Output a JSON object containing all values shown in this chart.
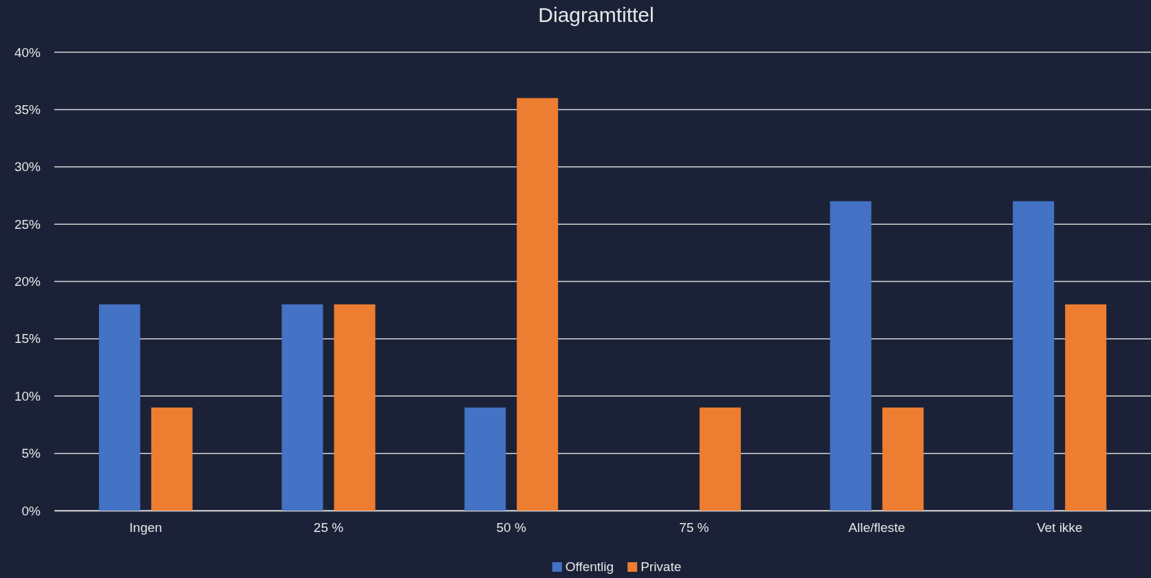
{
  "chart_data": {
    "type": "bar",
    "title": "Diagramtittel",
    "categories": [
      "Ingen",
      "25 %",
      "50 %",
      "75 %",
      "Alle/fleste",
      "Vet ikke"
    ],
    "series": [
      {
        "name": "Offentlig",
        "color": "#4472c4",
        "values": [
          18,
          18,
          9,
          0,
          27,
          27
        ]
      },
      {
        "name": "Private",
        "color": "#ed7d31",
        "values": [
          9,
          18,
          36,
          9,
          9,
          18
        ]
      }
    ],
    "ylim": [
      0,
      40
    ],
    "yticks": [
      {
        "value": 0,
        "label": "0%"
      },
      {
        "value": 5,
        "label": "5%"
      },
      {
        "value": 10,
        "label": "10%"
      },
      {
        "value": 15,
        "label": "15%"
      },
      {
        "value": 20,
        "label": "20%"
      },
      {
        "value": 25,
        "label": "25%"
      },
      {
        "value": 30,
        "label": "30%"
      },
      {
        "value": 35,
        "label": "35%"
      },
      {
        "value": 40,
        "label": "40%"
      }
    ],
    "grid": "y",
    "legend": "bottom"
  }
}
